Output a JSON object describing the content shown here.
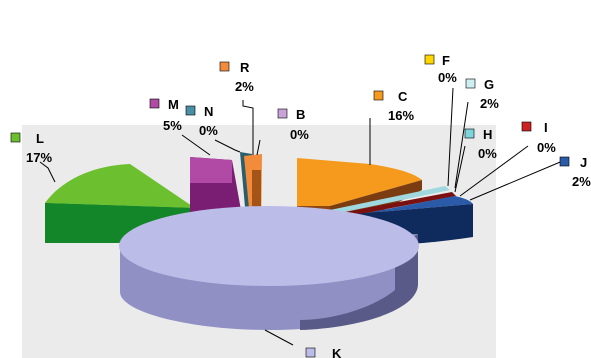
{
  "chart_data": {
    "type": "pie",
    "title": "",
    "style": "3d-exploded",
    "legend_placement": "labels-with-swatches",
    "slices": [
      {
        "label": "R",
        "pct_label": "2%",
        "value": 2,
        "color": "#f28c3c"
      },
      {
        "label": "C",
        "pct_label": "16%",
        "value": 16,
        "color": "#f59a1c"
      },
      {
        "label": "F",
        "pct_label": "0%",
        "value": 0,
        "color": "#ffd700"
      },
      {
        "label": "G",
        "pct_label": "2%",
        "value": 2,
        "color": "#cfeef3"
      },
      {
        "label": "H",
        "pct_label": "0%",
        "value": 0,
        "color": "#7fd3dc"
      },
      {
        "label": "I",
        "pct_label": "0%",
        "value": 0,
        "color": "#cc2222"
      },
      {
        "label": "J",
        "pct_label": "2%",
        "value": 2,
        "color": "#2a5aa8"
      },
      {
        "label": "K",
        "pct_label": "",
        "value": 45,
        "color": "#bcbce8"
      },
      {
        "label": "L",
        "pct_label": "17%",
        "value": 17,
        "color": "#6cc030"
      },
      {
        "label": "M",
        "pct_label": "5%",
        "value": 5,
        "color": "#b04aa4"
      },
      {
        "label": "N",
        "pct_label": "0%",
        "value": 0,
        "color": "#4a90a4"
      },
      {
        "label": "B",
        "pct_label": "0%",
        "value": 0,
        "color": "#c8a2d8"
      }
    ]
  }
}
